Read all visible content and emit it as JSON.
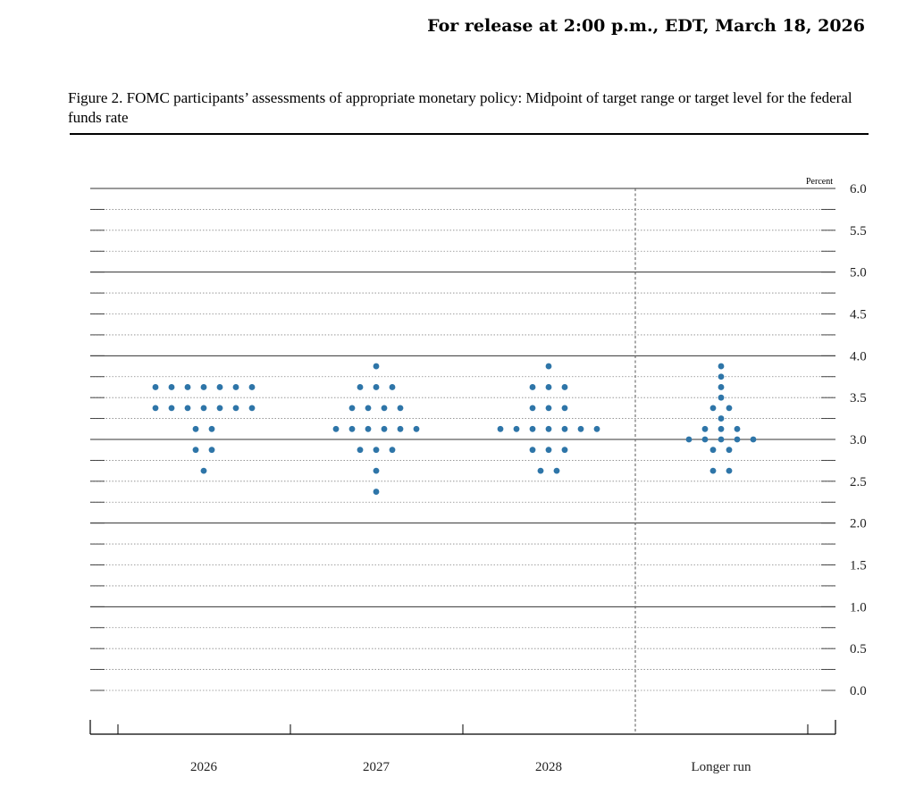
{
  "header": {
    "release_text": "For release at 2:00 p.m., EDT, March 18, 2026"
  },
  "figure": {
    "title": "Figure 2. FOMC participants’ assessments of appropriate monetary policy: Midpoint of target range or target level for the federal funds rate"
  },
  "colors": {
    "dot": "#2e75a8",
    "major_grid": "#333333",
    "minor_grid": "#888888"
  },
  "chart_data": {
    "type": "scatter",
    "subtype": "dot-plot",
    "ylabel": "Percent",
    "ylim": [
      0,
      6.0
    ],
    "y_tick_labels": [
      "0.0",
      "0.5",
      "1.0",
      "1.5",
      "2.0",
      "2.5",
      "3.0",
      "3.5",
      "4.0",
      "4.5",
      "5.0",
      "5.5",
      "6.0"
    ],
    "grid": true,
    "categories": [
      "2026",
      "2027",
      "2028",
      "Longer run"
    ],
    "dots": [
      {
        "category": "2026",
        "levels": [
          {
            "rate": 3.625,
            "count": 7
          },
          {
            "rate": 3.375,
            "count": 7
          },
          {
            "rate": 3.125,
            "count": 2
          },
          {
            "rate": 2.875,
            "count": 2
          },
          {
            "rate": 2.625,
            "count": 1
          }
        ]
      },
      {
        "category": "2027",
        "levels": [
          {
            "rate": 3.875,
            "count": 1
          },
          {
            "rate": 3.625,
            "count": 3
          },
          {
            "rate": 3.375,
            "count": 4
          },
          {
            "rate": 3.125,
            "count": 6
          },
          {
            "rate": 2.875,
            "count": 3
          },
          {
            "rate": 2.625,
            "count": 1
          },
          {
            "rate": 2.375,
            "count": 1
          }
        ]
      },
      {
        "category": "2028",
        "levels": [
          {
            "rate": 3.875,
            "count": 1
          },
          {
            "rate": 3.625,
            "count": 3
          },
          {
            "rate": 3.375,
            "count": 3
          },
          {
            "rate": 3.125,
            "count": 7
          },
          {
            "rate": 2.875,
            "count": 3
          },
          {
            "rate": 2.625,
            "count": 2
          }
        ]
      },
      {
        "category": "Longer run",
        "levels": [
          {
            "rate": 3.875,
            "count": 1
          },
          {
            "rate": 3.75,
            "count": 1
          },
          {
            "rate": 3.625,
            "count": 1
          },
          {
            "rate": 3.5,
            "count": 1
          },
          {
            "rate": 3.375,
            "count": 2
          },
          {
            "rate": 3.25,
            "count": 1
          },
          {
            "rate": 3.125,
            "count": 3
          },
          {
            "rate": 3.0,
            "count": 5
          },
          {
            "rate": 2.875,
            "count": 2
          },
          {
            "rate": 2.625,
            "count": 2
          }
        ]
      }
    ]
  }
}
